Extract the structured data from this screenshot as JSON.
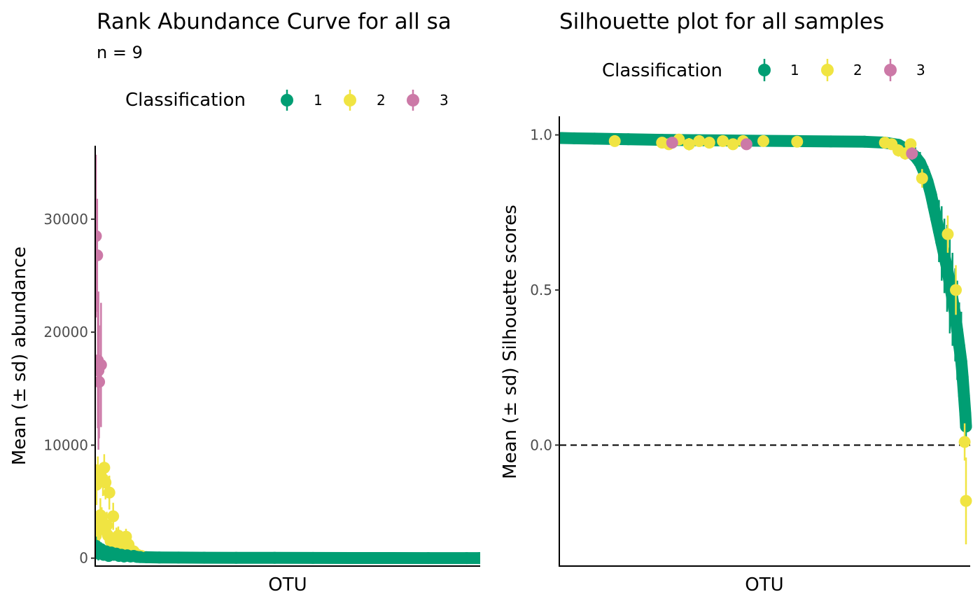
{
  "colors": {
    "1": "#009E73",
    "2": "#F0E442",
    "3": "#CC79A7",
    "axis": "#000000",
    "tick": "#4d4d4d"
  },
  "chart_data": [
    {
      "type": "scatter",
      "title": "Rank Abundance Curve for all sa",
      "subtitle": "n =  9",
      "xlabel": "OTU",
      "ylabel": "Mean (± sd) abundance",
      "ylim": [
        -700,
        36500
      ],
      "yticks": [
        0,
        10000,
        20000,
        30000
      ],
      "ytick_labels": [
        "0",
        "10000",
        "20000",
        "30000"
      ],
      "grid": false,
      "legend": {
        "title": "Classification",
        "position": "top",
        "entries": [
          "1",
          "2",
          "3"
        ]
      },
      "n_otus": 600,
      "series": [
        {
          "name": "3",
          "points": [
            {
              "rank": 1,
              "mean": 28500,
              "sd": 7200
            },
            {
              "rank": 3,
              "mean": 26800,
              "sd": 5000
            },
            {
              "rank": 4,
              "mean": 17500,
              "sd": 6000
            },
            {
              "rank": 5,
              "mean": 16600,
              "sd": 7000
            },
            {
              "rank": 6,
              "mean": 15600,
              "sd": 5000
            },
            {
              "rank": 9,
              "mean": 17100,
              "sd": 5500
            }
          ]
        },
        {
          "name": "2",
          "points": [
            {
              "rank": 1,
              "mean": 2000,
              "sd": 1200
            },
            {
              "rank": 2,
              "mean": 6500,
              "sd": 1800
            },
            {
              "rank": 4,
              "mean": 7500,
              "sd": 1500
            },
            {
              "rank": 6,
              "mean": 2500,
              "sd": 1500
            },
            {
              "rank": 8,
              "mean": 3800,
              "sd": 1500
            },
            {
              "rank": 10,
              "mean": 3300,
              "sd": 1200
            },
            {
              "rank": 12,
              "mean": 7000,
              "sd": 1500
            },
            {
              "rank": 14,
              "mean": 8000,
              "sd": 1200
            },
            {
              "rank": 16,
              "mean": 6700,
              "sd": 1500
            },
            {
              "rank": 18,
              "mean": 2900,
              "sd": 1200
            },
            {
              "rank": 20,
              "mean": 2000,
              "sd": 1200
            },
            {
              "rank": 22,
              "mean": 5800,
              "sd": 1500
            },
            {
              "rank": 24,
              "mean": 1500,
              "sd": 1000
            },
            {
              "rank": 26,
              "mean": 1200,
              "sd": 900
            },
            {
              "rank": 28,
              "mean": 3700,
              "sd": 1200
            },
            {
              "rank": 30,
              "mean": 1000,
              "sd": 800
            },
            {
              "rank": 33,
              "mean": 1800,
              "sd": 900
            },
            {
              "rank": 36,
              "mean": 2000,
              "sd": 800
            },
            {
              "rank": 40,
              "mean": 1500,
              "sd": 700
            },
            {
              "rank": 44,
              "mean": 1000,
              "sd": 600
            },
            {
              "rank": 48,
              "mean": 1900,
              "sd": 700
            },
            {
              "rank": 52,
              "mean": 1200,
              "sd": 600
            },
            {
              "rank": 56,
              "mean": 700,
              "sd": 500
            },
            {
              "rank": 60,
              "mean": 600,
              "sd": 400
            },
            {
              "rank": 66,
              "mean": 300,
              "sd": 300
            },
            {
              "rank": 72,
              "mean": 200,
              "sd": 200
            }
          ]
        },
        {
          "name": "1",
          "points": [
            {
              "rank": 1,
              "mean": 1100,
              "sd": 800
            },
            {
              "rank": 5,
              "mean": 400,
              "sd": 600
            },
            {
              "rank": 9,
              "mean": 800,
              "sd": 600
            },
            {
              "rank": 13,
              "mean": 300,
              "sd": 400
            },
            {
              "rank": 17,
              "mean": 600,
              "sd": 500
            },
            {
              "rank": 21,
              "mean": 200,
              "sd": 300
            },
            {
              "rank": 25,
              "mean": 500,
              "sd": 400
            },
            {
              "rank": 29,
              "mean": 300,
              "sd": 300
            },
            {
              "rank": 33,
              "mean": 400,
              "sd": 300
            },
            {
              "rank": 37,
              "mean": 200,
              "sd": 250
            },
            {
              "rank": 41,
              "mean": 300,
              "sd": 250
            },
            {
              "rank": 45,
              "mean": 150,
              "sd": 200
            },
            {
              "rank": 50,
              "mean": 250,
              "sd": 200
            },
            {
              "rank": 55,
              "mean": 150,
              "sd": 150
            },
            {
              "rank": 60,
              "mean": 200,
              "sd": 150
            },
            {
              "rank": 65,
              "mean": 120,
              "sd": 100
            },
            {
              "rank": 70,
              "mean": 100,
              "sd": 80
            },
            {
              "rank": 80,
              "mean": 80,
              "sd": 60
            },
            {
              "rank": 100,
              "mean": 60,
              "sd": 40
            },
            {
              "rank": 130,
              "mean": 50,
              "sd": 30
            },
            {
              "rank": 170,
              "mean": 40,
              "sd": 20
            },
            {
              "rank": 220,
              "mean": 30,
              "sd": 15
            },
            {
              "rank": 280,
              "mean": 25,
              "sd": 10
            },
            {
              "rank": 340,
              "mean": 20,
              "sd": 8
            },
            {
              "rank": 400,
              "mean": 15,
              "sd": 5
            },
            {
              "rank": 460,
              "mean": 10,
              "sd": 4
            },
            {
              "rank": 520,
              "mean": 8,
              "sd": 3
            },
            {
              "rank": 580,
              "mean": 5,
              "sd": 2
            },
            {
              "rank": 600,
              "mean": 3,
              "sd": 1
            }
          ]
        }
      ]
    },
    {
      "type": "scatter",
      "title": "Silhouette plot for all samples",
      "xlabel": "OTU",
      "ylabel": "Mean (± sd) Silhouette scores",
      "ylim": [
        -0.39,
        1.06
      ],
      "yticks": [
        0.0,
        0.5,
        1.0
      ],
      "ytick_labels": [
        "0.0",
        "0.5",
        "1.0"
      ],
      "grid": false,
      "reference_line": {
        "y": 0,
        "style": "dashed"
      },
      "legend": {
        "title": "Classification",
        "position": "top",
        "entries": [
          "1",
          "2",
          "3"
        ]
      },
      "n_otus": 600,
      "series": [
        {
          "name": "1",
          "points": [
            {
              "rank": 1,
              "mean": 0.99,
              "sd": 0.003
            },
            {
              "rank": 20,
              "mean": 0.989,
              "sd": 0.003
            },
            {
              "rank": 50,
              "mean": 0.988,
              "sd": 0.004
            },
            {
              "rank": 100,
              "mean": 0.986,
              "sd": 0.004
            },
            {
              "rank": 150,
              "mean": 0.984,
              "sd": 0.005
            },
            {
              "rank": 200,
              "mean": 0.983,
              "sd": 0.005
            },
            {
              "rank": 250,
              "mean": 0.982,
              "sd": 0.005
            },
            {
              "rank": 300,
              "mean": 0.981,
              "sd": 0.006
            },
            {
              "rank": 350,
              "mean": 0.98,
              "sd": 0.006
            },
            {
              "rank": 400,
              "mean": 0.979,
              "sd": 0.007
            },
            {
              "rank": 450,
              "mean": 0.978,
              "sd": 0.008
            },
            {
              "rank": 480,
              "mean": 0.975,
              "sd": 0.01
            },
            {
              "rank": 500,
              "mean": 0.968,
              "sd": 0.015
            },
            {
              "rank": 515,
              "mean": 0.95,
              "sd": 0.02
            },
            {
              "rank": 525,
              "mean": 0.93,
              "sd": 0.03
            },
            {
              "rank": 532,
              "mean": 0.91,
              "sd": 0.035
            },
            {
              "rank": 538,
              "mean": 0.88,
              "sd": 0.04
            },
            {
              "rank": 543,
              "mean": 0.85,
              "sd": 0.05
            },
            {
              "rank": 548,
              "mean": 0.81,
              "sd": 0.06
            },
            {
              "rank": 552,
              "mean": 0.77,
              "sd": 0.07
            },
            {
              "rank": 556,
              "mean": 0.73,
              "sd": 0.08
            },
            {
              "rank": 560,
              "mean": 0.69,
              "sd": 0.1
            },
            {
              "rank": 564,
              "mean": 0.65,
              "sd": 0.12
            },
            {
              "rank": 568,
              "mean": 0.61,
              "sd": 0.12
            },
            {
              "rank": 572,
              "mean": 0.57,
              "sd": 0.14
            },
            {
              "rank": 576,
              "mean": 0.52,
              "sd": 0.16
            },
            {
              "rank": 580,
              "mean": 0.47,
              "sd": 0.15
            },
            {
              "rank": 584,
              "mean": 0.42,
              "sd": 0.15
            },
            {
              "rank": 587,
              "mean": 0.37,
              "sd": 0.16
            },
            {
              "rank": 590,
              "mean": 0.32,
              "sd": 0.14
            },
            {
              "rank": 593,
              "mean": 0.27,
              "sd": 0.16
            },
            {
              "rank": 595,
              "mean": 0.22,
              "sd": 0.12
            },
            {
              "rank": 597,
              "mean": 0.16,
              "sd": 0.1
            },
            {
              "rank": 599,
              "mean": 0.1,
              "sd": 0.08
            },
            {
              "rank": 600,
              "mean": 0.06,
              "sd": 0.05
            }
          ]
        },
        {
          "name": "2",
          "points": [
            {
              "rank": 80,
              "mean": 0.98,
              "sd": 0.01
            },
            {
              "rank": 150,
              "mean": 0.975,
              "sd": 0.015
            },
            {
              "rank": 160,
              "mean": 0.97,
              "sd": 0.015
            },
            {
              "rank": 175,
              "mean": 0.985,
              "sd": 0.01
            },
            {
              "rank": 190,
              "mean": 0.97,
              "sd": 0.02
            },
            {
              "rank": 205,
              "mean": 0.98,
              "sd": 0.01
            },
            {
              "rank": 220,
              "mean": 0.975,
              "sd": 0.012
            },
            {
              "rank": 240,
              "mean": 0.98,
              "sd": 0.01
            },
            {
              "rank": 255,
              "mean": 0.97,
              "sd": 0.015
            },
            {
              "rank": 270,
              "mean": 0.98,
              "sd": 0.01
            },
            {
              "rank": 300,
              "mean": 0.98,
              "sd": 0.01
            },
            {
              "rank": 350,
              "mean": 0.978,
              "sd": 0.01
            },
            {
              "rank": 480,
              "mean": 0.975,
              "sd": 0.01
            },
            {
              "rank": 490,
              "mean": 0.97,
              "sd": 0.015
            },
            {
              "rank": 500,
              "mean": 0.95,
              "sd": 0.02
            },
            {
              "rank": 510,
              "mean": 0.94,
              "sd": 0.02
            },
            {
              "rank": 518,
              "mean": 0.97,
              "sd": 0.015
            },
            {
              "rank": 535,
              "mean": 0.86,
              "sd": 0.03
            },
            {
              "rank": 573,
              "mean": 0.68,
              "sd": 0.06
            },
            {
              "rank": 585,
              "mean": 0.5,
              "sd": 0.08
            },
            {
              "rank": 598,
              "mean": 0.01,
              "sd": 0.06
            },
            {
              "rank": 600,
              "mean": -0.18,
              "sd": 0.14
            }
          ]
        },
        {
          "name": "3",
          "points": [
            {
              "rank": 165,
              "mean": 0.975,
              "sd": 0.012
            },
            {
              "rank": 275,
              "mean": 0.97,
              "sd": 0.012
            },
            {
              "rank": 520,
              "mean": 0.94,
              "sd": 0.02
            }
          ]
        }
      ]
    }
  ]
}
